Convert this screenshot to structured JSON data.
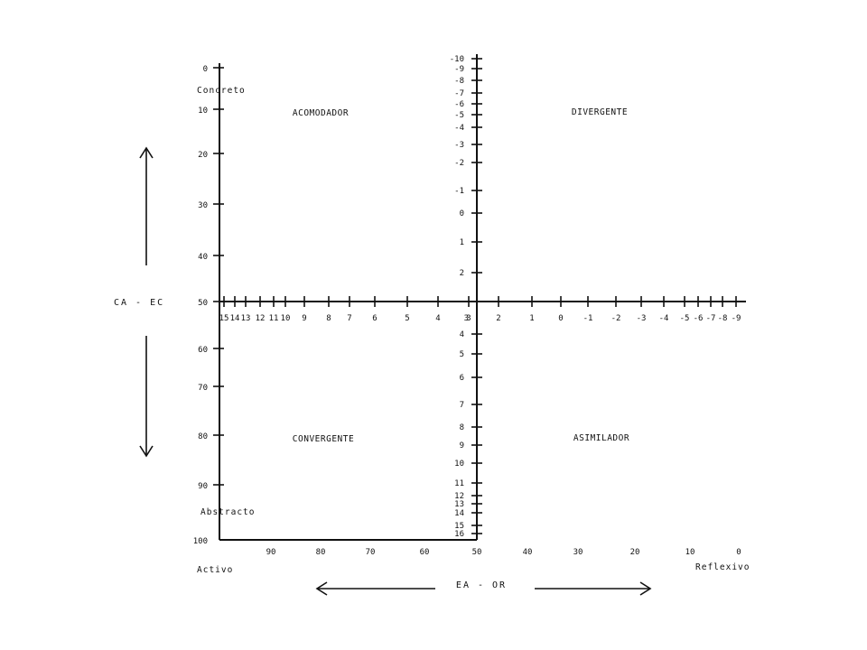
{
  "diagram": {
    "quadrants": {
      "top_left": "ACOMODADOR",
      "top_right": "DIVERGENTE",
      "bottom_left": "CONVERGENTE",
      "bottom_right": "ASIMILADOR"
    },
    "left_axis": {
      "title": "CA - EC",
      "top_label": "Concreto",
      "bottom_label": "Abstracto",
      "ticks": [
        "0",
        "10",
        "20",
        "30",
        "40",
        "50",
        "60",
        "70",
        "80",
        "90",
        "100"
      ]
    },
    "bottom_axis": {
      "title": "EA - OR",
      "left_label": "Activo",
      "right_label": "Reflexivo",
      "ticks": [
        "90",
        "80",
        "70",
        "60",
        "50",
        "40",
        "30",
        "20",
        "10",
        "0"
      ]
    },
    "horizontal_axis_ticks": [
      "15",
      "14",
      "13",
      "12",
      "11",
      "10",
      "9",
      "8",
      "7",
      "6",
      "5",
      "4",
      "3",
      "2",
      "1",
      "0",
      "-1",
      "-2",
      "-3",
      "-4",
      "-5",
      "-6",
      "-7",
      "-8",
      "-9"
    ],
    "vertical_axis_ticks": [
      "-10",
      "-9",
      "-8",
      "-7",
      "-6",
      "-5",
      "-4",
      "-3",
      "-2",
      "-1",
      "0",
      "1",
      "2",
      "3",
      "4",
      "5",
      "6",
      "7",
      "8",
      "9",
      "10",
      "11",
      "12",
      "13",
      "14",
      "15",
      "16"
    ]
  }
}
